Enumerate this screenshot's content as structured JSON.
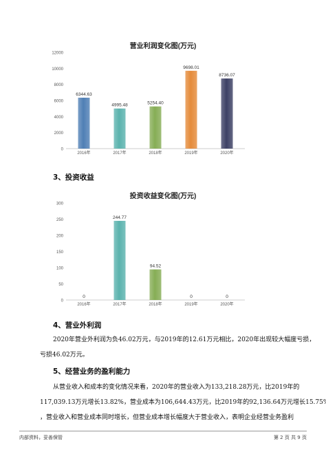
{
  "chart_data": [
    {
      "type": "bar",
      "title": "营业利润变化图(万元)",
      "categories": [
        "2016年",
        "2017年",
        "2018年",
        "2019年",
        "2020年"
      ],
      "values": [
        6344.63,
        4995.48,
        5254.4,
        9698.01,
        8736.07
      ],
      "value_labels": [
        "6344.63",
        "4995.48",
        "5254.40",
        "9698.01",
        "8736.07"
      ],
      "colors": [
        "#4f7fb5",
        "#5bb3ae",
        "#86ad55",
        "#e58b3a",
        "#3d4165"
      ],
      "ylim": [
        0,
        12000
      ],
      "yticks": [
        "0",
        "2000",
        "4000",
        "6000",
        "8000",
        "10000",
        "12000"
      ],
      "grid": false
    },
    {
      "type": "bar",
      "title": "投资收益变化图(万元)",
      "categories": [
        "2016年",
        "2017年",
        "2018年",
        "2019年",
        "2020年"
      ],
      "values": [
        0,
        244.77,
        94.52,
        0,
        0
      ],
      "value_labels": [
        "0",
        "244.77",
        "94.52",
        "0",
        "0"
      ],
      "colors": [
        "#4f7fb5",
        "#5bb3ae",
        "#86ad55",
        "#e58b3a",
        "#3d4165"
      ],
      "ylim": [
        0,
        300
      ],
      "yticks": [
        "0",
        "50",
        "100",
        "150",
        "200",
        "250",
        "300"
      ],
      "grid": false
    }
  ],
  "sections": {
    "s3": "3、投资收益",
    "s4": "4、营业外利润",
    "s4_lines": [
      "2020年营业外利润为负46.02万元，与2019年的12.61万元相比，2020年出现较大幅度亏损，",
      "亏损46.02万元。"
    ],
    "s5": "5、经营业务的盈利能力",
    "s5_lines": [
      "从营业收入和成本的变化情况来看，2020年的营业收入为133,218.28万元，比2019年的",
      "117,039.13万元增长13.82%，营业成本为106,644.43万元，比2019年的92,136.64万元增长15.75%",
      "，营业收入和营业成本同时增长，但营业成本增长幅度大于营业收入，表明企业经营业务盈利"
    ]
  },
  "footer": {
    "left": "内部资料，妥善保管",
    "right": "第 2 页  共 9 页"
  }
}
